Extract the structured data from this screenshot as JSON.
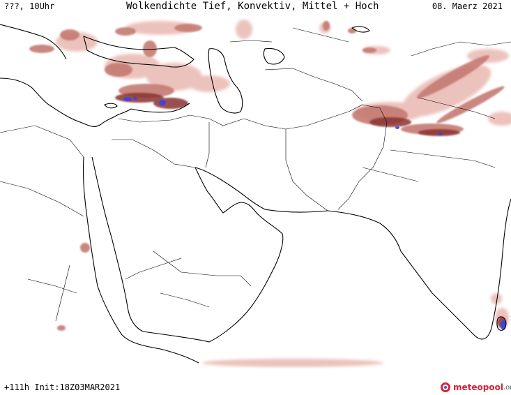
{
  "header": {
    "left": "???, 10Uhr",
    "title": "Wolkendichte  Tief, Konvektiv, Mittel + Hoch",
    "date": "08. Maerz 2021"
  },
  "footer": {
    "left": "+111h Init:18Z03MAR2021"
  },
  "brand": {
    "name": "meteopool",
    "tld": ".org"
  },
  "colors": {
    "cloud_light": "#e8b8b0",
    "cloud_mid": "#c57a72",
    "cloud_dark": "#8a3030",
    "convective": "#3344ee",
    "coastline": "#000000",
    "brand": "#d6243a"
  }
}
